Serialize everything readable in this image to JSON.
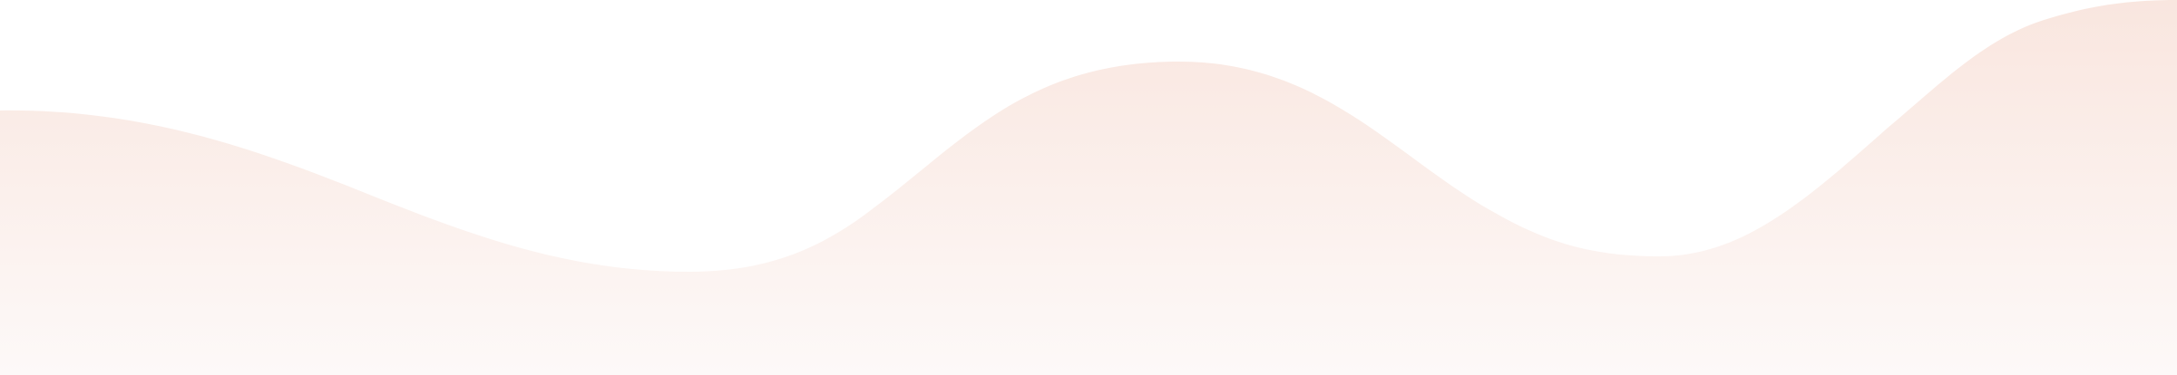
{
  "background_color": "#ffffff",
  "wave": {
    "gradient_top_color": "#f9e6df",
    "gradient_bottom_color": "#fdf9f8"
  }
}
